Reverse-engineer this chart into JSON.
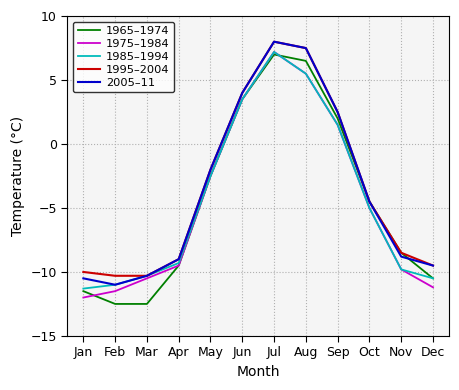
{
  "months": [
    "Jan",
    "Feb",
    "Mar",
    "Apr",
    "May",
    "Jun",
    "Jul",
    "Aug",
    "Sep",
    "Oct",
    "Nov",
    "Dec"
  ],
  "series": [
    {
      "label": "1965–1974",
      "color": "#008000",
      "linewidth": 1.3,
      "values": [
        -11.5,
        -12.5,
        -12.5,
        -9.5,
        -2.5,
        3.5,
        7.0,
        6.5,
        2.0,
        -4.5,
        -8.5,
        -10.5
      ]
    },
    {
      "label": "1975–1984",
      "color": "#cc00cc",
      "linewidth": 1.3,
      "values": [
        -12.0,
        -11.5,
        -10.5,
        -9.5,
        -2.5,
        3.5,
        7.2,
        5.5,
        1.5,
        -5.0,
        -9.8,
        -11.2
      ]
    },
    {
      "label": "1985–1994",
      "color": "#00bbbb",
      "linewidth": 1.3,
      "values": [
        -11.3,
        -11.0,
        -10.3,
        -9.3,
        -2.5,
        3.5,
        7.2,
        5.5,
        1.5,
        -5.0,
        -9.8,
        -10.5
      ]
    },
    {
      "label": "1995–2004",
      "color": "#cc0000",
      "linewidth": 1.5,
      "values": [
        -10.0,
        -10.3,
        -10.3,
        -9.0,
        -2.0,
        4.0,
        8.0,
        7.5,
        2.5,
        -4.5,
        -8.5,
        -9.5
      ]
    },
    {
      "label": "2005–11",
      "color": "#0000cc",
      "linewidth": 1.5,
      "values": [
        -10.5,
        -11.0,
        -10.3,
        -9.0,
        -2.0,
        4.0,
        8.0,
        7.5,
        2.5,
        -4.5,
        -8.8,
        -9.5
      ]
    }
  ],
  "xlabel": "Month",
  "ylabel": "Temperature (°C)",
  "ylim": [
    -15,
    10
  ],
  "yticks": [
    -15,
    -10,
    -5,
    0,
    5,
    10
  ],
  "grid_color": "#b0b0b0",
  "bg_color": "#f5f5f5",
  "legend_loc": "upper left",
  "tick_fontsize": 9,
  "label_fontsize": 10
}
